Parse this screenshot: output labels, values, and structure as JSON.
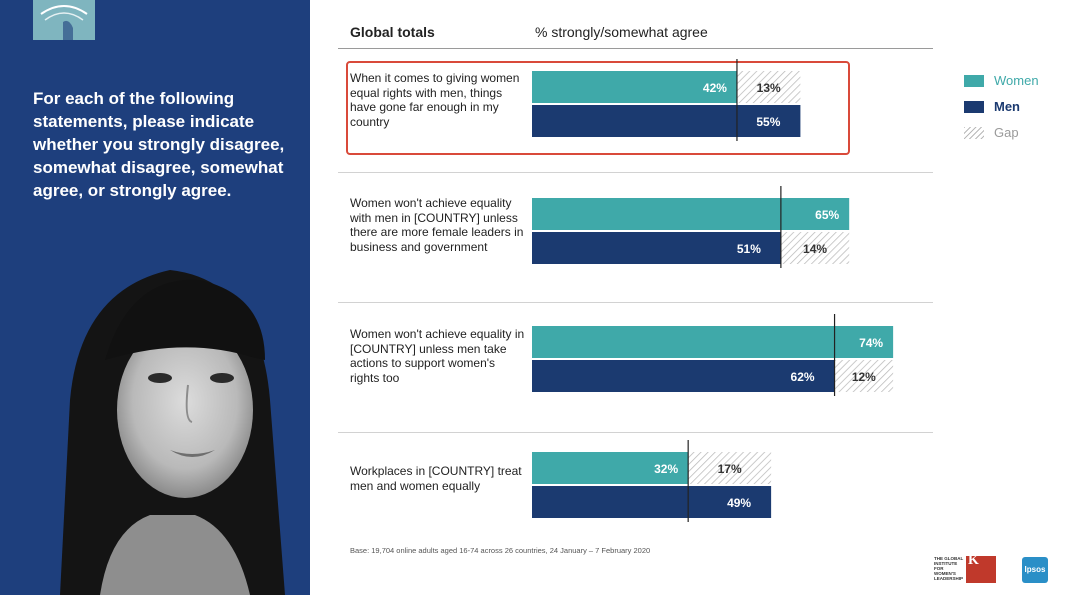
{
  "left_panel": {
    "prompt": "For each of the following statements, please indicate whether you strongly disagree, somewhat disagree, somewhat agree, or strongly agree."
  },
  "chart_data": {
    "type": "bar",
    "title": "Global totals",
    "subtitle": "% strongly/somewhat agree",
    "categories": [
      "When it comes to giving women equal rights with men, things have gone far enough in my country",
      "Women won't achieve equality with men in [COUNTRY] unless there are more female leaders in business and government",
      "Women won't achieve equality in [COUNTRY] unless men take actions to support women's rights too",
      "Workplaces in [COUNTRY] treat men and women equally"
    ],
    "series": [
      {
        "name": "Women",
        "values": [
          42,
          65,
          74,
          32
        ],
        "labels": [
          "42%",
          "65%",
          "74%",
          "32%"
        ]
      },
      {
        "name": "Men",
        "values": [
          55,
          51,
          62,
          49
        ],
        "labels": [
          "55%",
          "51%",
          "62%",
          "49%"
        ]
      },
      {
        "name": "Gap",
        "values": [
          13,
          14,
          12,
          17
        ],
        "labels": [
          "13%",
          "14%",
          "12%",
          "17%"
        ]
      }
    ],
    "xlim": [
      0,
      100
    ],
    "legend": "top-right",
    "grid": false,
    "highlighted_category_index": 0,
    "colors": {
      "women": "#3fa9a9",
      "men": "#1b3a70",
      "gap": "#b9b9b9",
      "highlight": "#d94a3a"
    }
  },
  "legend": {
    "women": "Women",
    "men": "Men",
    "gap": "Gap"
  },
  "footnote": "Base: 19,704 online adults aged 16-74 across 26 countries, 24 January – 7 February 2020",
  "logos": {
    "left_logo_icon": "swirl-logo-icon",
    "institute_text": "THE GLOBAL INSTITUTE FOR WOMEN'S LEADERSHIP",
    "kings": "King's College London",
    "ipsos": "Ipsos"
  }
}
